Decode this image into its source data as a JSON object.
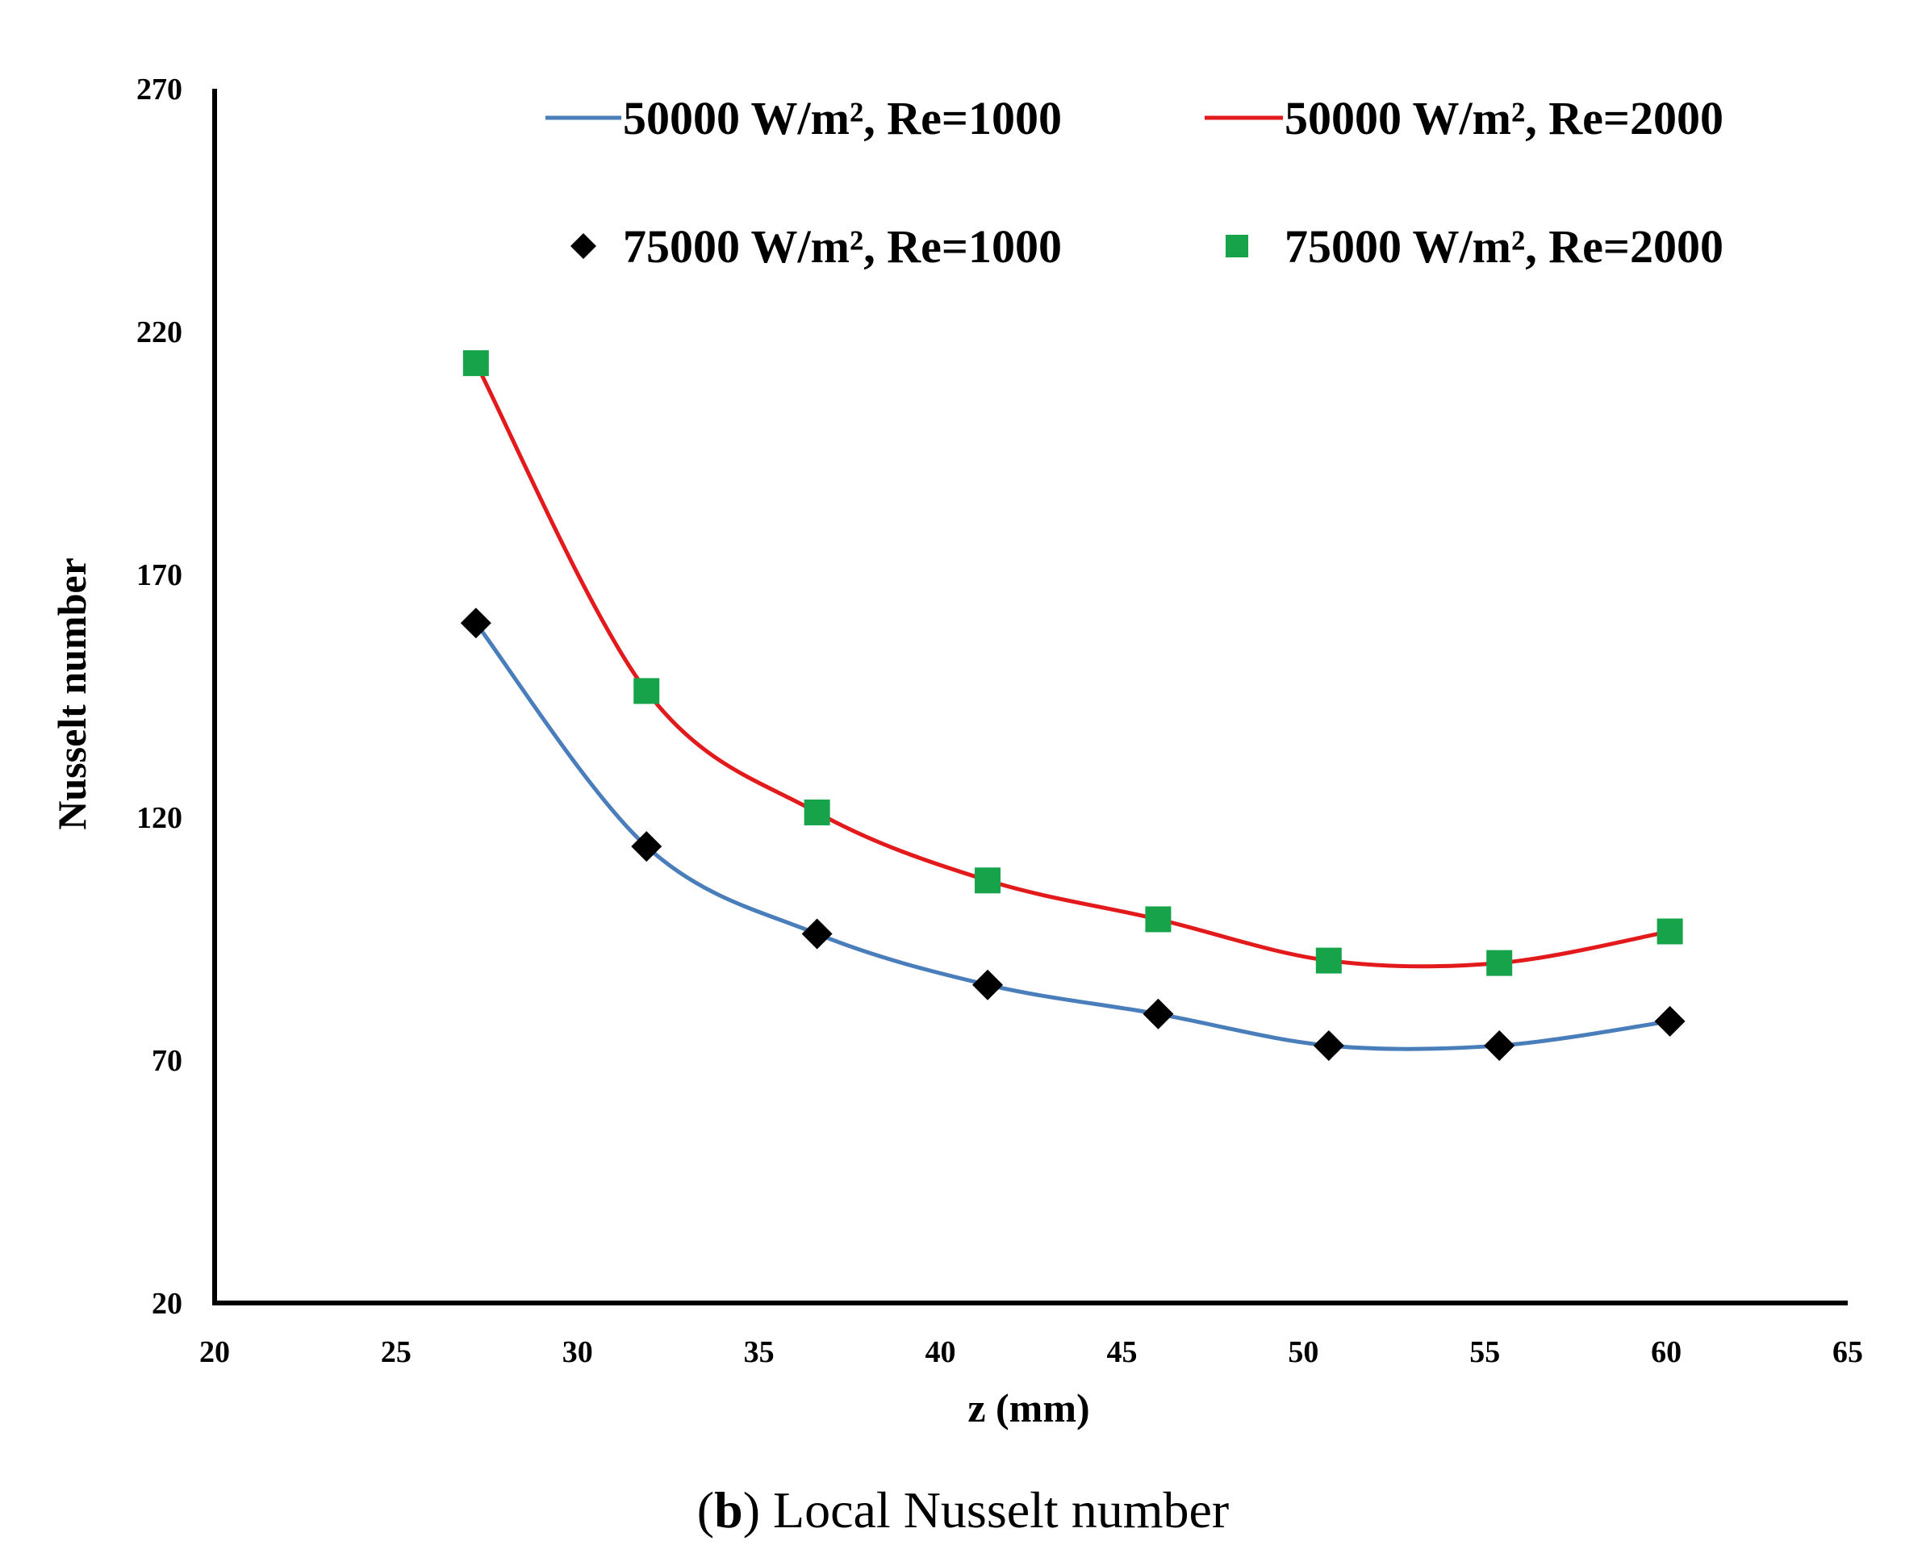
{
  "chart_data": {
    "type": "line",
    "title": "",
    "xlabel": "z  (mm)",
    "ylabel": "Nusselt number",
    "xlim": [
      20,
      65
    ],
    "ylim": [
      20,
      270
    ],
    "xticks": [
      20,
      25,
      30,
      35,
      40,
      45,
      50,
      55,
      60,
      65
    ],
    "yticks": [
      20,
      70,
      120,
      170,
      220,
      270
    ],
    "grid": false,
    "legend_position": "top",
    "colors": {
      "blue_line": "#4a7ebb",
      "red_line": "#e31a1c",
      "black_marker": "#000000",
      "green_marker": "#16a34a"
    },
    "series": [
      {
        "name": "50000 W/m², Re=1000",
        "style": "line",
        "color": "#4a7ebb",
        "x": [
          27.2,
          31.9,
          36.6,
          41.3,
          46.0,
          50.7,
          55.4,
          60.1
        ],
        "values": [
          160,
          114,
          96,
          85.5,
          79.5,
          73,
          73,
          78
        ]
      },
      {
        "name": "50000 W/m², Re=2000",
        "style": "line",
        "color": "#e31a1c",
        "x": [
          27.2,
          31.9,
          36.6,
          41.3,
          46.0,
          50.7,
          55.4,
          60.1
        ],
        "values": [
          213.5,
          146,
          121,
          107,
          99,
          90.5,
          90,
          96.5
        ]
      },
      {
        "name": "75000 W/m², Re=1000",
        "style": "marker",
        "marker": "diamond",
        "color": "#000000",
        "x": [
          27.2,
          31.9,
          36.6,
          41.3,
          46.0,
          50.7,
          55.4,
          60.1
        ],
        "values": [
          160,
          114,
          96,
          85.5,
          79.5,
          73,
          73,
          78
        ]
      },
      {
        "name": "75000 W/m², Re=2000",
        "style": "marker",
        "marker": "square",
        "color": "#16a34a",
        "x": [
          27.2,
          31.9,
          36.6,
          41.3,
          46.0,
          50.7,
          55.4,
          60.1
        ],
        "values": [
          213.5,
          146,
          121,
          107,
          99,
          90.5,
          90,
          96.5
        ]
      }
    ]
  },
  "caption": {
    "open_paren": "(",
    "letter": "b",
    "rest": ") Local Nusselt number"
  }
}
